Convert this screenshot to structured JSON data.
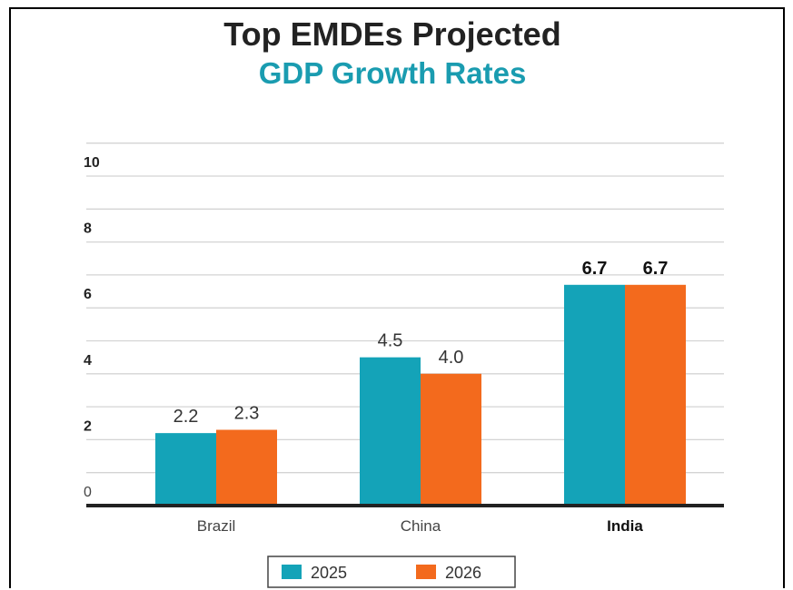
{
  "chart_data": {
    "type": "bar",
    "title": "Top EMDEs Projected",
    "subtitle": "GDP Growth Rates",
    "categories": [
      "Brazil",
      "China",
      "India"
    ],
    "series": [
      {
        "name": "2025",
        "values": [
          2.2,
          4.5,
          6.7
        ],
        "color": "#14a3b8"
      },
      {
        "name": "2026",
        "values": [
          2.3,
          4.0,
          6.7
        ],
        "color": "#f36a1d"
      }
    ],
    "value_labels": [
      [
        "2.2",
        "4.5",
        "6.7"
      ],
      [
        "2.3",
        "4.0",
        "6.7"
      ]
    ],
    "bold_category": "India",
    "y_ticks": [
      0,
      2,
      4,
      6,
      8,
      10
    ],
    "ylim": [
      0,
      10
    ],
    "grid": true,
    "legend_position": "bottom-center",
    "title_color": "#222222",
    "subtitle_color": "#1a9cb0"
  }
}
